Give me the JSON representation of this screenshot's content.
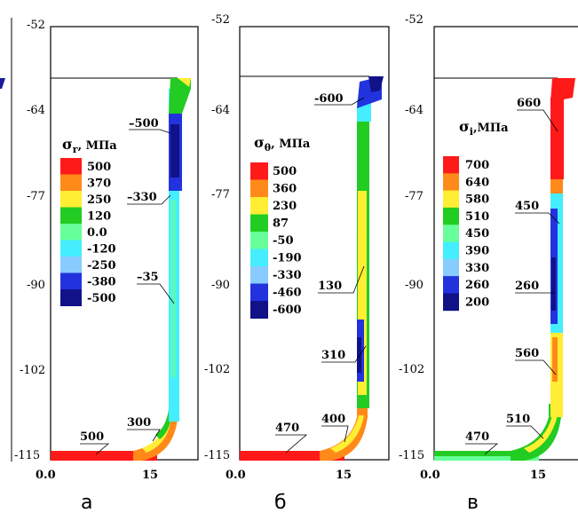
{
  "panels": [
    {
      "id": "a",
      "caption": "а",
      "ytick_labels": [
        "-52",
        "-64",
        "-77",
        "-90",
        "-102",
        "-115"
      ],
      "xtick_labels": [
        "0.0",
        "15"
      ],
      "legend_title_sym": "σ",
      "legend_title_sub": "r",
      "legend_title_unit": ", МПа",
      "legend_values": [
        "500",
        "370",
        "250",
        "120",
        "0.0",
        "-120",
        "-250",
        "-380",
        "-500"
      ],
      "legend_colors": [
        "#ff1a1a",
        "#ff8a1a",
        "#ffee33",
        "#22cc22",
        "#66ff99",
        "#44eeff",
        "#88ccff",
        "#2233dd",
        "#111188"
      ],
      "annotations": [
        "–500",
        "–330",
        "–35",
        "300",
        "500"
      ]
    },
    {
      "id": "b",
      "caption": "б",
      "ytick_labels": [
        "-52",
        "-64",
        "-77",
        "-90",
        "-102",
        "-115"
      ],
      "xtick_labels": [
        "0.0",
        "15"
      ],
      "legend_title_sym": "σ",
      "legend_title_sub": "θ",
      "legend_title_unit": ", МПа",
      "legend_values": [
        "500",
        "360",
        "230",
        "87",
        "-50",
        "-190",
        "-330",
        "-460",
        "-600"
      ],
      "legend_colors": [
        "#ff1a1a",
        "#ff8a1a",
        "#ffee33",
        "#22cc22",
        "#66ff99",
        "#44eeff",
        "#88ccff",
        "#2233dd",
        "#111188"
      ],
      "annotations": [
        "-600",
        "130",
        "310",
        "400",
        "470"
      ]
    },
    {
      "id": "c",
      "caption": "в",
      "ytick_labels": [
        "-52",
        "-64",
        "-77",
        "-90",
        "-102",
        "-115"
      ],
      "xtick_labels": [
        "0.0",
        "15"
      ],
      "legend_title_sym": "σ",
      "legend_title_sub": "i",
      "legend_title_unit": ",МПа",
      "legend_values": [
        "700",
        "640",
        "580",
        "510",
        "450",
        "390",
        "330",
        "260",
        "200"
      ],
      "legend_colors": [
        "#ff1a1a",
        "#ff8a1a",
        "#ffee33",
        "#22cc22",
        "#66ff99",
        "#44eeff",
        "#88ccff",
        "#2233dd",
        "#111188"
      ],
      "annotations": [
        "660",
        "450",
        "260",
        "560",
        "510",
        "470"
      ]
    }
  ]
}
